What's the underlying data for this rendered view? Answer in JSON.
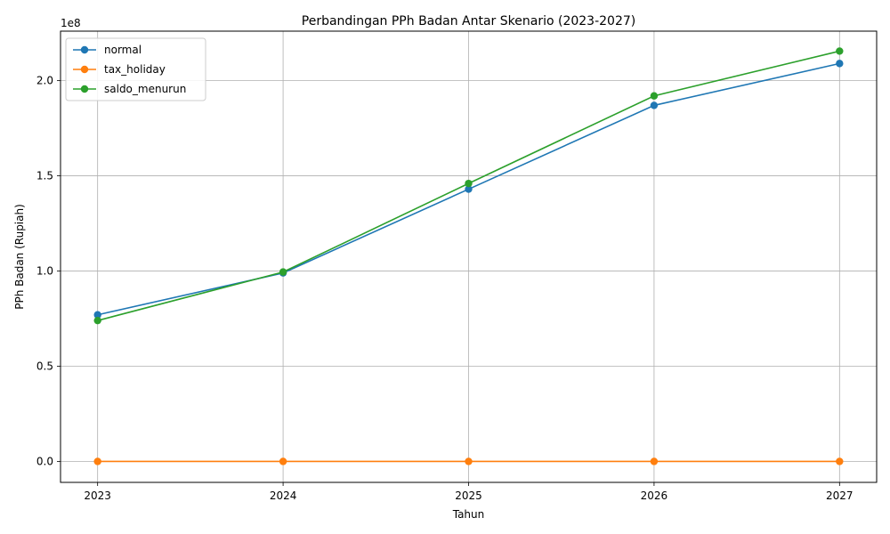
{
  "chart_data": {
    "type": "line",
    "title": "Perbandingan PPh Badan Antar Skenario (2023-2027)",
    "xlabel": "Tahun",
    "ylabel": "PPh Badan (Rupiah)",
    "y_offset_text": "1e8",
    "x": [
      2023,
      2024,
      2025,
      2026,
      2027
    ],
    "x_tick_labels": [
      "2023",
      "2024",
      "2025",
      "2026",
      "2027"
    ],
    "y_ticks": [
      0,
      0.5,
      1.0,
      1.5,
      2.0
    ],
    "y_tick_labels": [
      "0.0",
      "0.5",
      "1.0",
      "1.5",
      "2.0"
    ],
    "ylim": [
      -0.11,
      2.26
    ],
    "xlim": [
      2022.8,
      2027.2
    ],
    "y_unit_multiplier": 100000000,
    "grid": true,
    "legend_position": "upper-left",
    "series": [
      {
        "name": "normal",
        "color": "#1f77b4",
        "values": [
          0.77,
          0.99,
          1.43,
          1.87,
          2.09
        ]
      },
      {
        "name": "tax_holiday",
        "color": "#ff7f0e",
        "values": [
          0.0,
          0.0,
          0.0,
          0.0,
          0.0
        ]
      },
      {
        "name": "saldo_menurun",
        "color": "#2ca02c",
        "values": [
          0.74,
          0.995,
          1.46,
          1.92,
          2.155
        ]
      }
    ]
  }
}
